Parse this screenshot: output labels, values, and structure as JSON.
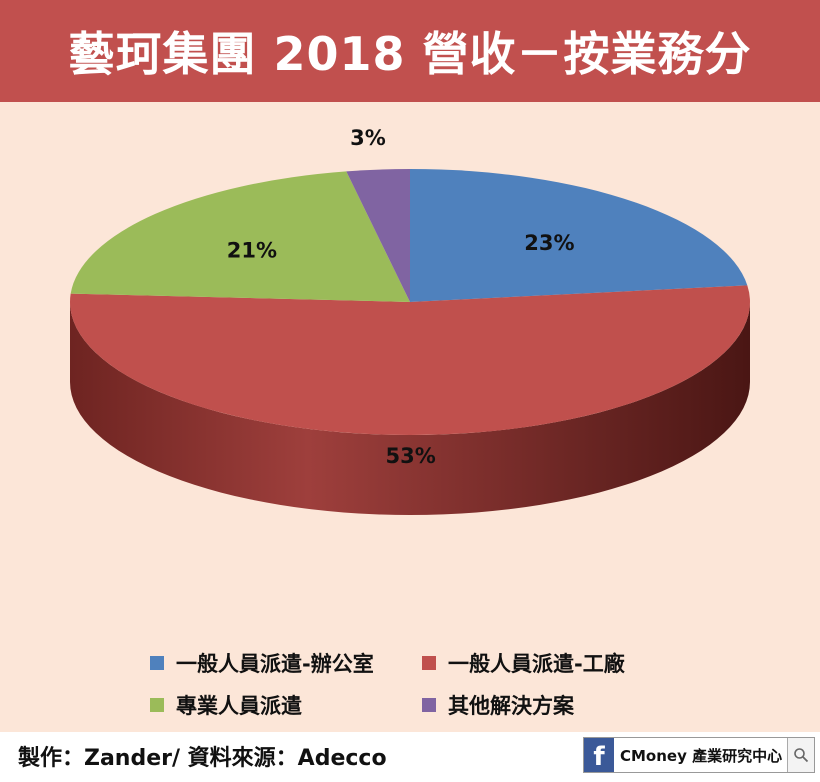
{
  "title": "藝珂集團 2018 營收－按業務分",
  "chart_data": {
    "type": "pie",
    "series": [
      {
        "name": "一般人員派遣-辦公室",
        "value": 23,
        "label": "23%",
        "color": "#4f81bd"
      },
      {
        "name": "一般人員派遣-工廠",
        "value": 53,
        "label": "53%",
        "color": "#c0504d"
      },
      {
        "name": "專業人員派遣",
        "value": 21,
        "label": "21%",
        "color": "#9bbb59"
      },
      {
        "name": "其他解決方案",
        "value": 3,
        "label": "3%",
        "color": "#8064a2"
      }
    ],
    "legend_position": "bottom"
  },
  "footer": {
    "credit": "製作：Zander/ 資料來源：Adecco",
    "brand_icon": "facebook-icon",
    "brand_text": "CMoney 產業研究中心",
    "search_icon": "search-icon"
  }
}
